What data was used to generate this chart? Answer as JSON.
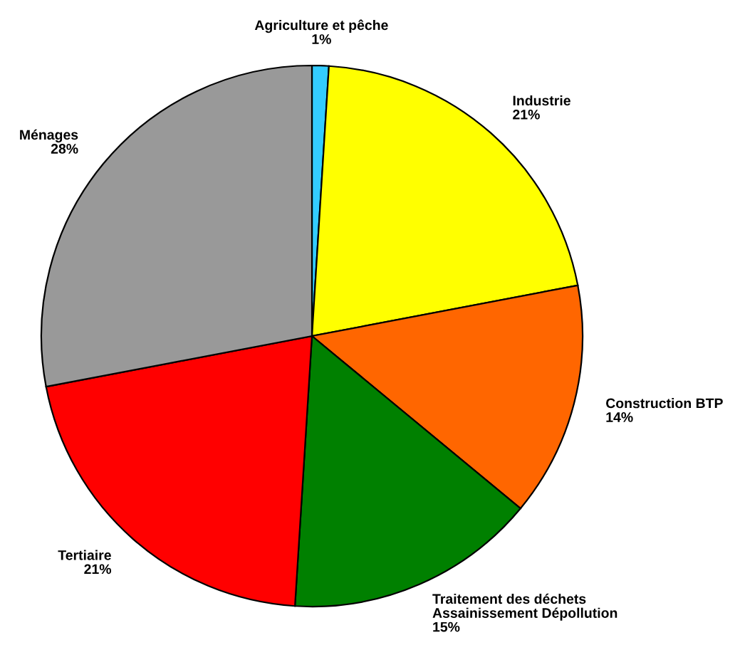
{
  "chart_data": {
    "type": "pie",
    "categories": [
      "Agriculture et pêche",
      "Industrie",
      "Construction BTP",
      "Traitement des déchets\nAssainissement Dépollution",
      "Tertiaire",
      "Ménages"
    ],
    "values": [
      1,
      21,
      14,
      15,
      21,
      28
    ],
    "colors": [
      "#33ccff",
      "#ffff00",
      "#ff6600",
      "#008000",
      "#ff0000",
      "#999999"
    ],
    "value_labels": [
      "1%",
      "21%",
      "14%",
      "15%",
      "21%",
      "28%"
    ]
  }
}
